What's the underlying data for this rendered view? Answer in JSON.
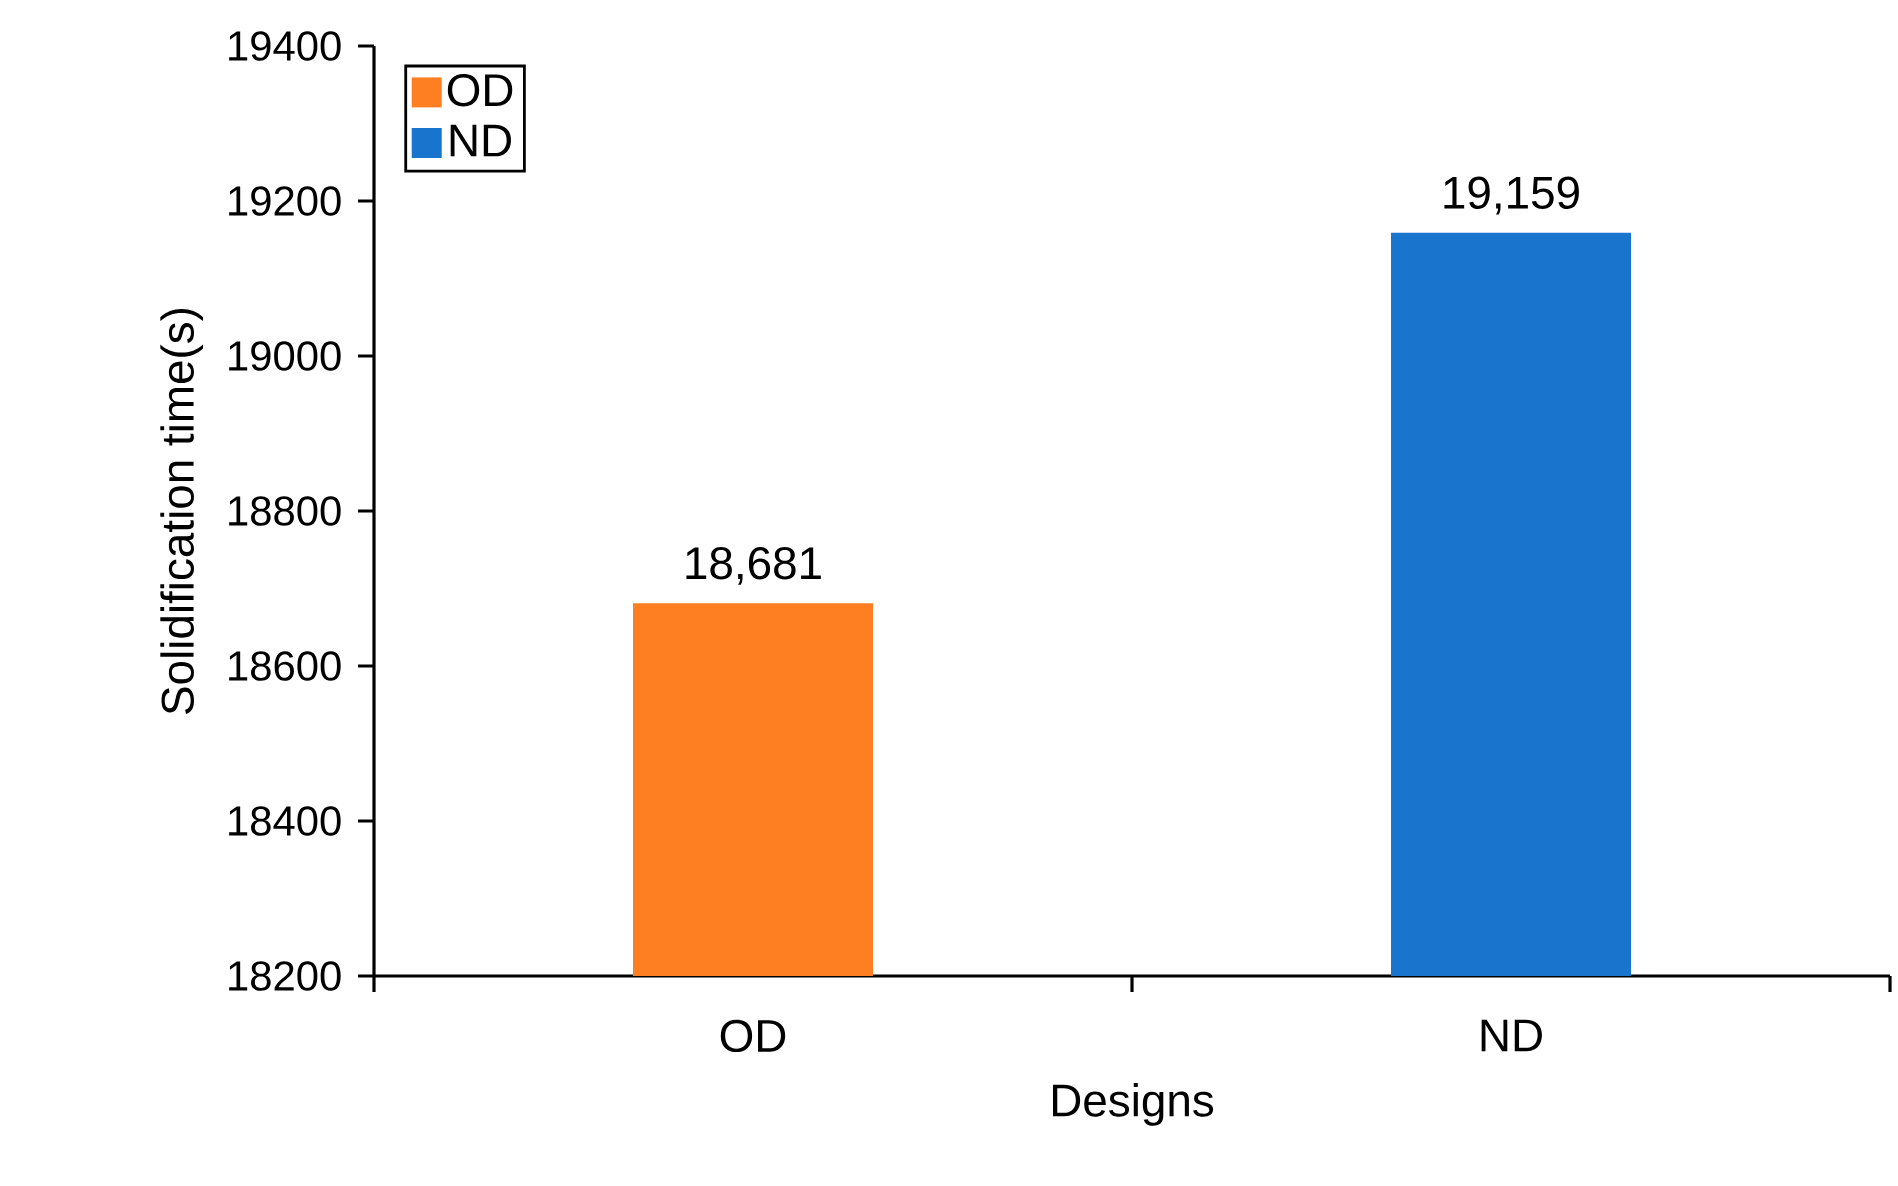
{
  "chart_data": {
    "type": "bar",
    "xlabel": "Designs",
    "ylabel": "Solidification time(s)",
    "categories": [
      "OD",
      "ND"
    ],
    "series": [
      {
        "name": "OD",
        "color": "#fd7f22",
        "values": [
          18681,
          null
        ],
        "value_labels": [
          "18,681",
          null
        ]
      },
      {
        "name": "ND",
        "color": "#1874cd",
        "values": [
          null,
          19159
        ],
        "value_labels": [
          null,
          "19,159"
        ]
      }
    ],
    "ylim": [
      18200,
      19400
    ],
    "yticks": [
      18200,
      18400,
      18600,
      18800,
      19000,
      19200,
      19400
    ],
    "grid": false,
    "legend": "top left"
  }
}
